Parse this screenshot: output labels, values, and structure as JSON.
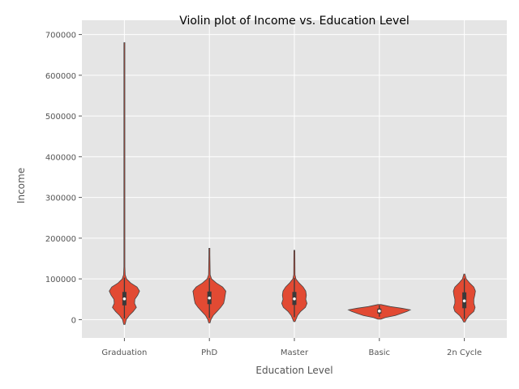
{
  "chart_data": {
    "type": "violin",
    "title": "Violin plot of Income vs. Education Level",
    "xlabel": "Education Level",
    "ylabel": "Income",
    "categories": [
      "Graduation",
      "PhD",
      "Master",
      "Basic",
      "2n Cycle"
    ],
    "ylim": [
      -45000,
      735000
    ],
    "yticks": [
      0,
      100000,
      200000,
      300000,
      400000,
      500000,
      600000,
      700000
    ],
    "ytick_labels": [
      "0",
      "100000",
      "200000",
      "300000",
      "400000",
      "500000",
      "600000",
      "700000"
    ],
    "grid": true,
    "fill_color": "#E24A33",
    "background_color": "#E5E5E5",
    "violins": [
      {
        "category": "Graduation",
        "min": -12000,
        "max": 680000,
        "q1": 35000,
        "median": 51000,
        "q3": 68000,
        "whisker_low": 3000,
        "whisker_high": 103000,
        "profile": [
          [
            -12000,
            0.02
          ],
          [
            0,
            0.06
          ],
          [
            10000,
            0.15
          ],
          [
            20000,
            0.28
          ],
          [
            30000,
            0.38
          ],
          [
            40000,
            0.32
          ],
          [
            50000,
            0.33
          ],
          [
            60000,
            0.42
          ],
          [
            70000,
            0.48
          ],
          [
            80000,
            0.4
          ],
          [
            90000,
            0.2
          ],
          [
            100000,
            0.07
          ],
          [
            110000,
            0.025
          ],
          [
            130000,
            0.012
          ],
          [
            680000,
            0.012
          ]
        ]
      },
      {
        "category": "PhD",
        "min": -8000,
        "max": 175000,
        "q1": 38000,
        "median": 53000,
        "q3": 69000,
        "whisker_low": 4000,
        "whisker_high": 102000,
        "profile": [
          [
            -8000,
            0.02
          ],
          [
            0,
            0.05
          ],
          [
            10000,
            0.12
          ],
          [
            20000,
            0.24
          ],
          [
            30000,
            0.36
          ],
          [
            40000,
            0.45
          ],
          [
            50000,
            0.48
          ],
          [
            60000,
            0.5
          ],
          [
            70000,
            0.52
          ],
          [
            80000,
            0.42
          ],
          [
            90000,
            0.22
          ],
          [
            100000,
            0.07
          ],
          [
            110000,
            0.025
          ],
          [
            160000,
            0.015
          ],
          [
            175000,
            0.008
          ]
        ]
      },
      {
        "category": "Master",
        "min": -5000,
        "max": 170000,
        "q1": 36000,
        "median": 51000,
        "q3": 68000,
        "whisker_low": 6000,
        "whisker_high": 102000,
        "profile": [
          [
            -5000,
            0.02
          ],
          [
            0,
            0.05
          ],
          [
            10000,
            0.1
          ],
          [
            20000,
            0.2
          ],
          [
            30000,
            0.35
          ],
          [
            40000,
            0.4
          ],
          [
            50000,
            0.36
          ],
          [
            60000,
            0.38
          ],
          [
            70000,
            0.36
          ],
          [
            80000,
            0.28
          ],
          [
            90000,
            0.15
          ],
          [
            100000,
            0.05
          ],
          [
            110000,
            0.02
          ],
          [
            170000,
            0.012
          ]
        ]
      },
      {
        "category": "Basic",
        "min": 1000,
        "max": 37000,
        "q1": 15000,
        "median": 21000,
        "q3": 27000,
        "whisker_low": 7000,
        "whisker_high": 35000,
        "profile": [
          [
            1000,
            0.05
          ],
          [
            5000,
            0.18
          ],
          [
            10000,
            0.5
          ],
          [
            15000,
            0.7
          ],
          [
            20000,
            0.88
          ],
          [
            24000,
            0.98
          ],
          [
            28000,
            0.7
          ],
          [
            32000,
            0.35
          ],
          [
            37000,
            0.05
          ]
        ]
      },
      {
        "category": "2n Cycle",
        "min": -6000,
        "max": 112000,
        "q1": 28000,
        "median": 46000,
        "q3": 67000,
        "whisker_low": 2000,
        "whisker_high": 101000,
        "profile": [
          [
            -6000,
            0.02
          ],
          [
            0,
            0.06
          ],
          [
            10000,
            0.15
          ],
          [
            20000,
            0.3
          ],
          [
            30000,
            0.34
          ],
          [
            40000,
            0.3
          ],
          [
            50000,
            0.3
          ],
          [
            60000,
            0.33
          ],
          [
            70000,
            0.35
          ],
          [
            80000,
            0.3
          ],
          [
            90000,
            0.17
          ],
          [
            100000,
            0.06
          ],
          [
            112000,
            0.01
          ]
        ]
      }
    ]
  }
}
